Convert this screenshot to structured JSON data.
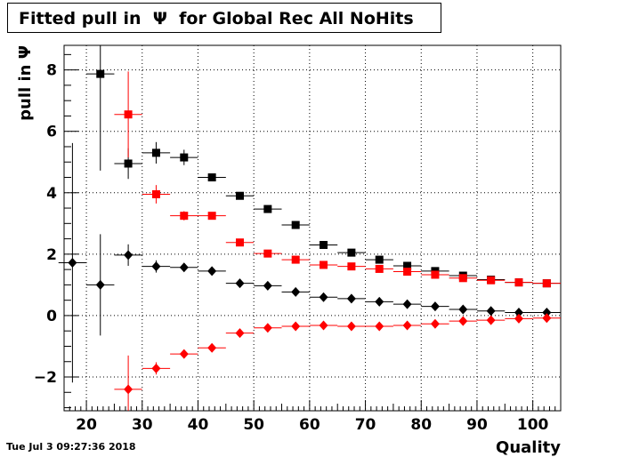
{
  "header": {
    "title": "Fitted pull in  Ψ  for Global Rec All NoHits"
  },
  "footer": {
    "timestamp": "Tue Jul  3 09:27:36 2018"
  },
  "chart_data": {
    "type": "scatter",
    "title": "Fitted pull in  Ψ  for Global Rec All NoHits",
    "xlabel": "Quality",
    "ylabel": "pull in  Ψ",
    "xlim": [
      16,
      105
    ],
    "ylim": [
      -3.1,
      8.8
    ],
    "x_ticks": [
      "20",
      "30",
      "40",
      "50",
      "60",
      "70",
      "80",
      "90",
      "100"
    ],
    "y_ticks": [
      "−2",
      "0",
      "2",
      "4",
      "6",
      "8"
    ],
    "grid": true,
    "series": [
      {
        "color": "#000000",
        "marker": "square",
        "points": [
          {
            "x": 22.5,
            "y": 7.87,
            "yerr": 3.15
          },
          {
            "x": 27.5,
            "y": 4.95,
            "yerr": 0.5
          },
          {
            "x": 32.5,
            "y": 5.3,
            "yerr": 0.35
          },
          {
            "x": 37.5,
            "y": 5.15,
            "yerr": 0.25
          },
          {
            "x": 42.5,
            "y": 4.5,
            "yerr": 0.1
          },
          {
            "x": 47.5,
            "y": 3.9,
            "yerr": 0.05
          },
          {
            "x": 52.5,
            "y": 3.47,
            "yerr": 0.05
          },
          {
            "x": 57.5,
            "y": 2.95,
            "yerr": 0.05
          },
          {
            "x": 62.5,
            "y": 2.3,
            "yerr": 0.05
          },
          {
            "x": 67.5,
            "y": 2.05,
            "yerr": 0.05
          },
          {
            "x": 72.5,
            "y": 1.82,
            "yerr": 0.05
          },
          {
            "x": 77.5,
            "y": 1.62,
            "yerr": 0.05
          },
          {
            "x": 82.5,
            "y": 1.45,
            "yerr": 0.05
          },
          {
            "x": 87.5,
            "y": 1.3,
            "yerr": 0.05
          },
          {
            "x": 92.5,
            "y": 1.17,
            "yerr": 0.05
          },
          {
            "x": 97.5,
            "y": 1.08,
            "yerr": 0.05
          },
          {
            "x": 102.5,
            "y": 1.05,
            "yerr": 0.05
          }
        ]
      },
      {
        "color": "#ff0000",
        "marker": "square",
        "points": [
          {
            "x": 27.5,
            "y": 6.55,
            "yerr": 1.4
          },
          {
            "x": 32.5,
            "y": 3.95,
            "yerr": 0.3
          },
          {
            "x": 37.5,
            "y": 3.25,
            "yerr": 0.15
          },
          {
            "x": 42.5,
            "y": 3.25,
            "yerr": 0.1
          },
          {
            "x": 47.5,
            "y": 2.38,
            "yerr": 0.05
          },
          {
            "x": 52.5,
            "y": 2.02,
            "yerr": 0.05
          },
          {
            "x": 57.5,
            "y": 1.82,
            "yerr": 0.05
          },
          {
            "x": 62.5,
            "y": 1.65,
            "yerr": 0.05
          },
          {
            "x": 67.5,
            "y": 1.6,
            "yerr": 0.05
          },
          {
            "x": 72.5,
            "y": 1.52,
            "yerr": 0.05
          },
          {
            "x": 77.5,
            "y": 1.43,
            "yerr": 0.05
          },
          {
            "x": 82.5,
            "y": 1.33,
            "yerr": 0.05
          },
          {
            "x": 87.5,
            "y": 1.22,
            "yerr": 0.05
          },
          {
            "x": 92.5,
            "y": 1.15,
            "yerr": 0.05
          },
          {
            "x": 97.5,
            "y": 1.08,
            "yerr": 0.05
          },
          {
            "x": 102.5,
            "y": 1.05,
            "yerr": 0.05
          }
        ]
      },
      {
        "color": "#000000",
        "marker": "diamond",
        "points": [
          {
            "x": 17.5,
            "y": 1.72,
            "yerr": 3.9
          },
          {
            "x": 22.5,
            "y": 1.0,
            "yerr": 1.65
          },
          {
            "x": 27.5,
            "y": 1.97,
            "yerr": 0.35
          },
          {
            "x": 32.5,
            "y": 1.6,
            "yerr": 0.2
          },
          {
            "x": 37.5,
            "y": 1.57,
            "yerr": 0.1
          },
          {
            "x": 42.5,
            "y": 1.45,
            "yerr": 0.05
          },
          {
            "x": 47.5,
            "y": 1.05,
            "yerr": 0.05
          },
          {
            "x": 52.5,
            "y": 0.97,
            "yerr": 0.05
          },
          {
            "x": 57.5,
            "y": 0.77,
            "yerr": 0.05
          },
          {
            "x": 62.5,
            "y": 0.6,
            "yerr": 0.05
          },
          {
            "x": 67.5,
            "y": 0.55,
            "yerr": 0.05
          },
          {
            "x": 72.5,
            "y": 0.45,
            "yerr": 0.05
          },
          {
            "x": 77.5,
            "y": 0.37,
            "yerr": 0.05
          },
          {
            "x": 82.5,
            "y": 0.3,
            "yerr": 0.05
          },
          {
            "x": 87.5,
            "y": 0.2,
            "yerr": 0.05
          },
          {
            "x": 92.5,
            "y": 0.15,
            "yerr": 0.05
          },
          {
            "x": 97.5,
            "y": 0.1,
            "yerr": 0.05
          },
          {
            "x": 102.5,
            "y": 0.1,
            "yerr": 0.05
          }
        ]
      },
      {
        "color": "#ff0000",
        "marker": "diamond",
        "points": [
          {
            "x": 27.5,
            "y": -2.4,
            "yerr": 1.1
          },
          {
            "x": 32.5,
            "y": -1.72,
            "yerr": 0.2
          },
          {
            "x": 37.5,
            "y": -1.25,
            "yerr": 0.1
          },
          {
            "x": 42.5,
            "y": -1.05,
            "yerr": 0.05
          },
          {
            "x": 47.5,
            "y": -0.57,
            "yerr": 0.05
          },
          {
            "x": 52.5,
            "y": -0.4,
            "yerr": 0.05
          },
          {
            "x": 57.5,
            "y": -0.35,
            "yerr": 0.05
          },
          {
            "x": 62.5,
            "y": -0.32,
            "yerr": 0.05
          },
          {
            "x": 67.5,
            "y": -0.35,
            "yerr": 0.05
          },
          {
            "x": 72.5,
            "y": -0.35,
            "yerr": 0.05
          },
          {
            "x": 77.5,
            "y": -0.32,
            "yerr": 0.05
          },
          {
            "x": 82.5,
            "y": -0.27,
            "yerr": 0.05
          },
          {
            "x": 87.5,
            "y": -0.18,
            "yerr": 0.05
          },
          {
            "x": 92.5,
            "y": -0.15,
            "yerr": 0.05
          },
          {
            "x": 97.5,
            "y": -0.1,
            "yerr": 0.05
          },
          {
            "x": 102.5,
            "y": -0.08,
            "yerr": 0.05
          }
        ]
      }
    ]
  }
}
